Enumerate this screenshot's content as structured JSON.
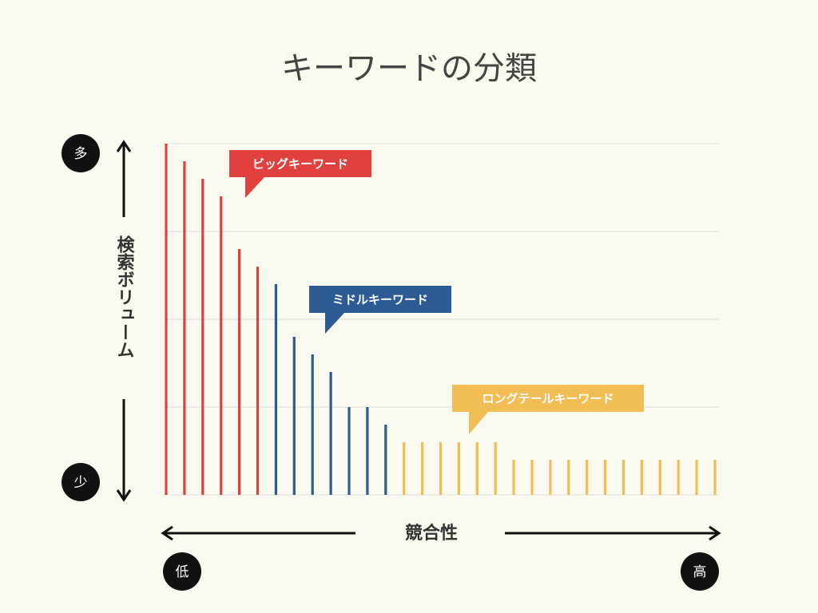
{
  "chart_data": {
    "type": "bar",
    "title": "キーワードの分類",
    "ylabel": "検索ボリューム",
    "xlabel": "競合性",
    "y_axis_high": "多",
    "y_axis_low": "少",
    "x_axis_low": "低",
    "x_axis_high": "高",
    "ylim": [
      0,
      100
    ],
    "yticks": [
      0,
      25,
      50,
      75,
      100
    ],
    "grid": true,
    "series": [
      {
        "name": "ビッグキーワード",
        "color": "#e0403e",
        "values": [
          100,
          95,
          90,
          85,
          70,
          65
        ]
      },
      {
        "name": "ミドルキーワード",
        "color": "#2e5b94",
        "values": [
          60,
          45,
          40,
          35,
          25,
          25,
          20
        ]
      },
      {
        "name": "ロングテールキーワード",
        "color": "#f2bd55",
        "values": [
          15,
          15,
          15,
          15,
          15,
          15,
          10,
          10,
          10,
          10,
          10,
          10,
          10,
          10,
          10,
          10,
          10,
          10
        ]
      }
    ]
  }
}
